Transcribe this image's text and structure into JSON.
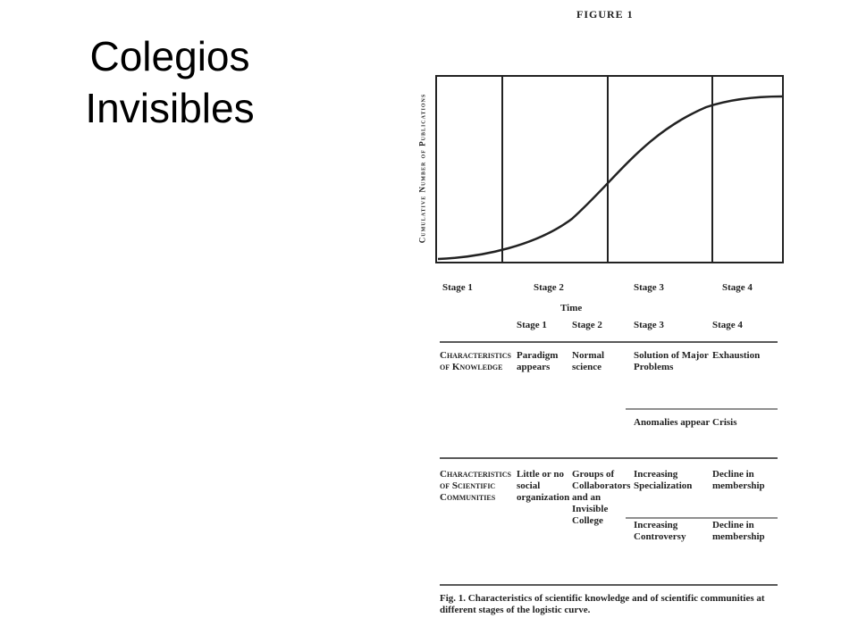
{
  "slide": {
    "title": "Colegios Invisibles"
  },
  "figure": {
    "label": "FIGURE 1",
    "y_axis_label": "Cumulative Number of Publications",
    "stages": [
      "Stage 1",
      "Stage 2",
      "Stage 3",
      "Stage 4"
    ],
    "x_axis_label": "Time",
    "table": {
      "header": [
        "Stage 1",
        "Stage 2",
        "Stage 3",
        "Stage 4"
      ],
      "rows": [
        {
          "label": "Characteristics of Knowledge",
          "cells": [
            "Paradigm appears",
            "Normal science",
            "Solution of Major Problems",
            "Exhaustion"
          ],
          "sub_cells": [
            "Anomalies appear",
            "Crisis"
          ]
        },
        {
          "label": "Characteristics of Scientific Communities",
          "cells": [
            "Little or no social organization",
            "Groups of Collaborators and an Invisible College",
            "Increasing Specialization",
            "Decline in membership"
          ],
          "sub_cells": [
            "Increasing Controversy",
            "Decline in membership"
          ]
        }
      ]
    },
    "caption": "Fig. 1. Characteristics of scientific knowledge and of scientific communities at different stages of the logistic curve."
  }
}
